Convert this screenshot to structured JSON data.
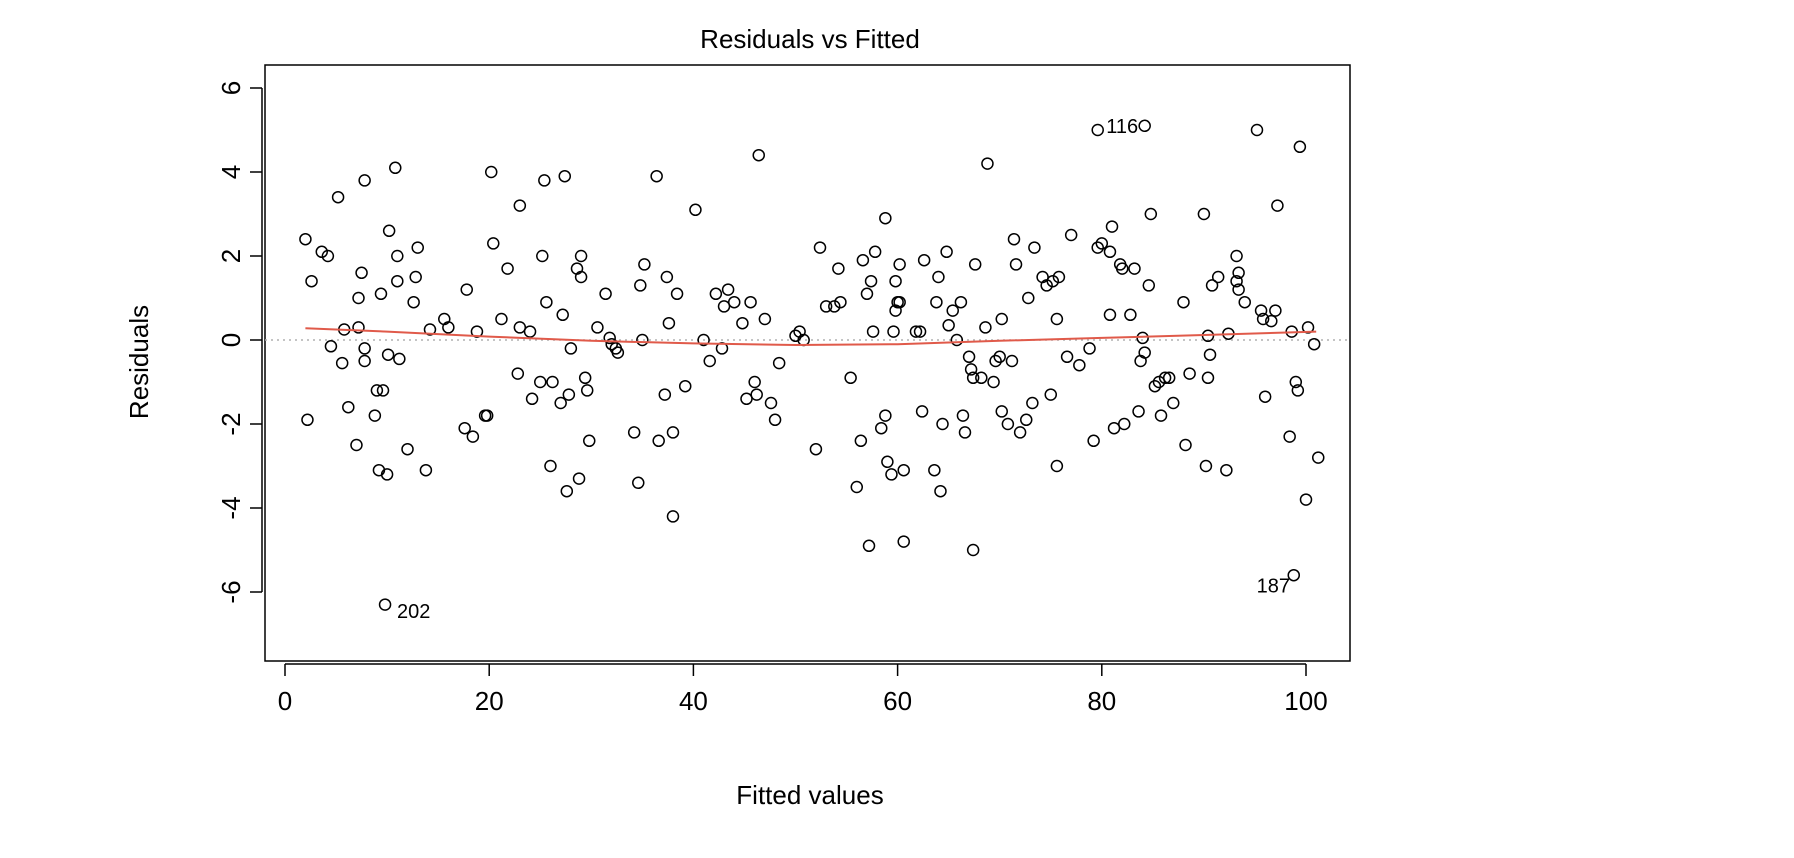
{
  "chart_data": {
    "type": "scatter",
    "title": "Residuals vs Fitted",
    "xlabel": "Fitted values",
    "ylabel": "Residuals",
    "xlim": [
      0,
      102
    ],
    "ylim": [
      -7.5,
      6.5
    ],
    "xticks": [
      0,
      20,
      40,
      60,
      80,
      100
    ],
    "yticks": [
      -6,
      -4,
      -2,
      0,
      2,
      4,
      6
    ],
    "xtick_labels": [
      "0",
      "20",
      "40",
      "60",
      "80",
      "100"
    ],
    "ytick_labels": [
      "-6",
      "-4",
      "-2",
      "0",
      "2",
      "4",
      "6"
    ],
    "grid": false,
    "zero_line": true,
    "colors": {
      "points": "#000000",
      "smooth": "#e05a4a",
      "zero_line": "#b0b0b0"
    },
    "points": [
      {
        "x": 2.0,
        "y": 2.4
      },
      {
        "x": 2.6,
        "y": 1.4
      },
      {
        "x": 3.6,
        "y": 2.1
      },
      {
        "x": 4.2,
        "y": 2.0
      },
      {
        "x": 2.2,
        "y": -1.9
      },
      {
        "x": 4.5,
        "y": -0.15
      },
      {
        "x": 5.2,
        "y": 3.4
      },
      {
        "x": 5.8,
        "y": 0.25
      },
      {
        "x": 5.6,
        "y": -0.55
      },
      {
        "x": 6.2,
        "y": -1.6
      },
      {
        "x": 7.0,
        "y": -2.5
      },
      {
        "x": 7.2,
        "y": 1.0
      },
      {
        "x": 7.2,
        "y": 0.3
      },
      {
        "x": 7.5,
        "y": 1.6
      },
      {
        "x": 7.8,
        "y": 3.8
      },
      {
        "x": 7.8,
        "y": -0.2
      },
      {
        "x": 7.8,
        "y": -0.5
      },
      {
        "x": 8.8,
        "y": -1.8
      },
      {
        "x": 9.0,
        "y": -1.2
      },
      {
        "x": 9.2,
        "y": -3.1
      },
      {
        "x": 9.4,
        "y": 1.1
      },
      {
        "x": 9.6,
        "y": -1.2
      },
      {
        "x": 10.0,
        "y": -3.2
      },
      {
        "x": 10.1,
        "y": -0.35
      },
      {
        "x": 10.2,
        "y": 2.6
      },
      {
        "x": 10.8,
        "y": 4.1
      },
      {
        "x": 11.0,
        "y": 2.0
      },
      {
        "x": 11.0,
        "y": 1.4
      },
      {
        "x": 11.2,
        "y": -0.45
      },
      {
        "x": 12.0,
        "y": -2.6
      },
      {
        "x": 12.6,
        "y": 0.9
      },
      {
        "x": 12.8,
        "y": 1.5
      },
      {
        "x": 13.0,
        "y": 2.2
      },
      {
        "x": 13.8,
        "y": -3.1
      },
      {
        "x": 14.2,
        "y": 0.25
      },
      {
        "x": 15.6,
        "y": 0.5
      },
      {
        "x": 16.0,
        "y": 0.3
      },
      {
        "x": 17.6,
        "y": -2.1
      },
      {
        "x": 17.8,
        "y": 1.2
      },
      {
        "x": 18.4,
        "y": -2.3
      },
      {
        "x": 18.8,
        "y": 0.2
      },
      {
        "x": 19.6,
        "y": -1.8
      },
      {
        "x": 19.8,
        "y": -1.8
      },
      {
        "x": 20.2,
        "y": 4.0
      },
      {
        "x": 20.4,
        "y": 2.3
      },
      {
        "x": 21.2,
        "y": 0.5
      },
      {
        "x": 21.8,
        "y": 1.7
      },
      {
        "x": 22.8,
        "y": -0.8
      },
      {
        "x": 23.0,
        "y": 3.2
      },
      {
        "x": 23.0,
        "y": 0.3
      },
      {
        "x": 24.0,
        "y": 0.2
      },
      {
        "x": 24.2,
        "y": -1.4
      },
      {
        "x": 25.0,
        "y": -1.0
      },
      {
        "x": 25.2,
        "y": 2.0
      },
      {
        "x": 25.4,
        "y": 3.8
      },
      {
        "x": 25.6,
        "y": 0.9
      },
      {
        "x": 26.0,
        "y": -3.0
      },
      {
        "x": 26.2,
        "y": -1.0
      },
      {
        "x": 27.0,
        "y": -1.5
      },
      {
        "x": 27.2,
        "y": 0.6
      },
      {
        "x": 27.4,
        "y": 3.9
      },
      {
        "x": 27.6,
        "y": -3.6
      },
      {
        "x": 27.8,
        "y": -1.3
      },
      {
        "x": 28.0,
        "y": -0.2
      },
      {
        "x": 28.6,
        "y": 1.7
      },
      {
        "x": 28.8,
        "y": -3.3
      },
      {
        "x": 29.0,
        "y": 2.0
      },
      {
        "x": 29.0,
        "y": 1.5
      },
      {
        "x": 29.4,
        "y": -0.9
      },
      {
        "x": 29.6,
        "y": -1.2
      },
      {
        "x": 29.8,
        "y": -2.4
      },
      {
        "x": 30.6,
        "y": 0.3
      },
      {
        "x": 31.4,
        "y": 1.1
      },
      {
        "x": 31.8,
        "y": 0.05
      },
      {
        "x": 32.0,
        "y": -0.1
      },
      {
        "x": 32.4,
        "y": -0.2
      },
      {
        "x": 32.6,
        "y": -0.3
      },
      {
        "x": 34.2,
        "y": -2.2
      },
      {
        "x": 34.6,
        "y": -3.4
      },
      {
        "x": 34.8,
        "y": 1.3
      },
      {
        "x": 35.0,
        "y": 0.0
      },
      {
        "x": 35.2,
        "y": 1.8
      },
      {
        "x": 36.4,
        "y": 3.9
      },
      {
        "x": 36.6,
        "y": -2.4
      },
      {
        "x": 37.2,
        "y": -1.3
      },
      {
        "x": 37.4,
        "y": 1.5
      },
      {
        "x": 37.6,
        "y": 0.4
      },
      {
        "x": 38.0,
        "y": -2.2
      },
      {
        "x": 38.0,
        "y": -4.2
      },
      {
        "x": 38.4,
        "y": 1.1
      },
      {
        "x": 39.2,
        "y": -1.1
      },
      {
        "x": 40.2,
        "y": 3.1
      },
      {
        "x": 41.0,
        "y": 0.0
      },
      {
        "x": 41.6,
        "y": -0.5
      },
      {
        "x": 42.2,
        "y": 1.1
      },
      {
        "x": 42.8,
        "y": -0.2
      },
      {
        "x": 43.0,
        "y": 0.8
      },
      {
        "x": 43.4,
        "y": 1.2
      },
      {
        "x": 44.0,
        "y": 0.9
      },
      {
        "x": 44.8,
        "y": 0.4
      },
      {
        "x": 45.2,
        "y": -1.4
      },
      {
        "x": 45.6,
        "y": 0.9
      },
      {
        "x": 46.0,
        "y": -1.0
      },
      {
        "x": 46.2,
        "y": -1.3
      },
      {
        "x": 46.4,
        "y": 4.4
      },
      {
        "x": 47.0,
        "y": 0.5
      },
      {
        "x": 47.6,
        "y": -1.5
      },
      {
        "x": 48.0,
        "y": -1.9
      },
      {
        "x": 48.4,
        "y": -0.55
      },
      {
        "x": 50.0,
        "y": 0.1
      },
      {
        "x": 50.4,
        "y": 0.2
      },
      {
        "x": 50.8,
        "y": 0.0
      },
      {
        "x": 52.0,
        "y": -2.6
      },
      {
        "x": 52.4,
        "y": 2.2
      },
      {
        "x": 53.0,
        "y": 0.8
      },
      {
        "x": 53.8,
        "y": 0.8
      },
      {
        "x": 54.2,
        "y": 1.7
      },
      {
        "x": 54.4,
        "y": 0.9
      },
      {
        "x": 55.4,
        "y": -0.9
      },
      {
        "x": 56.0,
        "y": -3.5
      },
      {
        "x": 56.4,
        "y": -2.4
      },
      {
        "x": 56.6,
        "y": 1.9
      },
      {
        "x": 57.0,
        "y": 1.1
      },
      {
        "x": 57.2,
        "y": -4.9
      },
      {
        "x": 57.4,
        "y": 1.4
      },
      {
        "x": 57.6,
        "y": 0.2
      },
      {
        "x": 57.8,
        "y": 2.1
      },
      {
        "x": 58.4,
        "y": -2.1
      },
      {
        "x": 58.8,
        "y": -1.8
      },
      {
        "x": 58.8,
        "y": 2.9
      },
      {
        "x": 59.0,
        "y": -2.9
      },
      {
        "x": 59.4,
        "y": -3.2
      },
      {
        "x": 59.6,
        "y": 0.2
      },
      {
        "x": 59.8,
        "y": 1.4
      },
      {
        "x": 59.8,
        "y": 0.7
      },
      {
        "x": 60.0,
        "y": 0.9
      },
      {
        "x": 60.2,
        "y": 0.9
      },
      {
        "x": 60.2,
        "y": 1.8
      },
      {
        "x": 60.6,
        "y": -3.1
      },
      {
        "x": 60.6,
        "y": -4.8
      },
      {
        "x": 61.8,
        "y": 0.2
      },
      {
        "x": 62.2,
        "y": 0.2
      },
      {
        "x": 62.4,
        "y": -1.7
      },
      {
        "x": 62.6,
        "y": 1.9
      },
      {
        "x": 63.6,
        "y": -3.1
      },
      {
        "x": 63.8,
        "y": 0.9
      },
      {
        "x": 64.0,
        "y": 1.5
      },
      {
        "x": 64.2,
        "y": -3.6
      },
      {
        "x": 64.4,
        "y": -2.0
      },
      {
        "x": 64.8,
        "y": 2.1
      },
      {
        "x": 65.0,
        "y": 0.35
      },
      {
        "x": 65.4,
        "y": 0.7
      },
      {
        "x": 65.8,
        "y": 0.0
      },
      {
        "x": 66.2,
        "y": 0.9
      },
      {
        "x": 66.4,
        "y": -1.8
      },
      {
        "x": 66.6,
        "y": -2.2
      },
      {
        "x": 67.0,
        "y": -0.4
      },
      {
        "x": 67.2,
        "y": -0.7
      },
      {
        "x": 67.4,
        "y": -0.9
      },
      {
        "x": 67.4,
        "y": -5.0
      },
      {
        "x": 67.6,
        "y": 1.8
      },
      {
        "x": 68.2,
        "y": -0.9
      },
      {
        "x": 68.6,
        "y": 0.3
      },
      {
        "x": 68.8,
        "y": 4.2
      },
      {
        "x": 69.4,
        "y": -1.0
      },
      {
        "x": 69.6,
        "y": -0.5
      },
      {
        "x": 70.0,
        "y": -0.4
      },
      {
        "x": 70.2,
        "y": 0.5
      },
      {
        "x": 70.2,
        "y": -1.7
      },
      {
        "x": 70.8,
        "y": -2.0
      },
      {
        "x": 71.2,
        "y": -0.5
      },
      {
        "x": 71.4,
        "y": 2.4
      },
      {
        "x": 71.6,
        "y": 1.8
      },
      {
        "x": 72.0,
        "y": -2.2
      },
      {
        "x": 72.6,
        "y": -1.9
      },
      {
        "x": 72.8,
        "y": 1.0
      },
      {
        "x": 73.2,
        "y": -1.5
      },
      {
        "x": 73.4,
        "y": 2.2
      },
      {
        "x": 74.2,
        "y": 1.5
      },
      {
        "x": 74.6,
        "y": 1.3
      },
      {
        "x": 75.0,
        "y": -1.3
      },
      {
        "x": 75.2,
        "y": 1.4
      },
      {
        "x": 75.6,
        "y": -3.0
      },
      {
        "x": 75.6,
        "y": 0.5
      },
      {
        "x": 75.8,
        "y": 1.5
      },
      {
        "x": 76.6,
        "y": -0.4
      },
      {
        "x": 77.0,
        "y": 2.5
      },
      {
        "x": 77.8,
        "y": -0.6
      },
      {
        "x": 78.8,
        "y": -0.2
      },
      {
        "x": 79.2,
        "y": -2.4
      },
      {
        "x": 79.6,
        "y": 5.0
      },
      {
        "x": 79.6,
        "y": 2.2
      },
      {
        "x": 80.0,
        "y": 2.3
      },
      {
        "x": 80.8,
        "y": 2.1
      },
      {
        "x": 80.8,
        "y": 0.6
      },
      {
        "x": 81.0,
        "y": 2.7
      },
      {
        "x": 81.2,
        "y": -2.1
      },
      {
        "x": 81.8,
        "y": 1.8
      },
      {
        "x": 82.0,
        "y": 1.7
      },
      {
        "x": 82.2,
        "y": -2.0
      },
      {
        "x": 82.8,
        "y": 0.6
      },
      {
        "x": 83.2,
        "y": 1.7
      },
      {
        "x": 83.6,
        "y": -1.7
      },
      {
        "x": 83.8,
        "y": -0.5
      },
      {
        "x": 84.0,
        "y": 0.05
      },
      {
        "x": 84.2,
        "y": 5.1
      },
      {
        "x": 84.2,
        "y": -0.3
      },
      {
        "x": 84.6,
        "y": 1.3
      },
      {
        "x": 84.8,
        "y": 3.0
      },
      {
        "x": 85.2,
        "y": -1.1
      },
      {
        "x": 85.6,
        "y": -1.0
      },
      {
        "x": 85.8,
        "y": -1.8
      },
      {
        "x": 86.2,
        "y": -0.9
      },
      {
        "x": 86.6,
        "y": -0.9
      },
      {
        "x": 87.0,
        "y": -1.5
      },
      {
        "x": 88.0,
        "y": 0.9
      },
      {
        "x": 88.2,
        "y": -2.5
      },
      {
        "x": 88.6,
        "y": -0.8
      },
      {
        "x": 90.0,
        "y": 3.0
      },
      {
        "x": 90.2,
        "y": -3.0
      },
      {
        "x": 90.4,
        "y": 0.1
      },
      {
        "x": 90.4,
        "y": -0.9
      },
      {
        "x": 90.6,
        "y": -0.35
      },
      {
        "x": 90.8,
        "y": 1.3
      },
      {
        "x": 91.4,
        "y": 1.5
      },
      {
        "x": 92.2,
        "y": -3.1
      },
      {
        "x": 92.4,
        "y": 0.15
      },
      {
        "x": 93.2,
        "y": 2.0
      },
      {
        "x": 93.2,
        "y": 1.4
      },
      {
        "x": 93.4,
        "y": 1.2
      },
      {
        "x": 93.4,
        "y": 1.6
      },
      {
        "x": 94.0,
        "y": 0.9
      },
      {
        "x": 95.2,
        "y": 5.0
      },
      {
        "x": 95.6,
        "y": 0.7
      },
      {
        "x": 95.8,
        "y": 0.5
      },
      {
        "x": 96.0,
        "y": -1.35
      },
      {
        "x": 96.6,
        "y": 0.45
      },
      {
        "x": 97.0,
        "y": 0.7
      },
      {
        "x": 97.2,
        "y": 3.2
      },
      {
        "x": 98.4,
        "y": -2.3
      },
      {
        "x": 98.6,
        "y": 0.2
      },
      {
        "x": 98.8,
        "y": -5.6
      },
      {
        "x": 99.0,
        "y": -1.0
      },
      {
        "x": 99.2,
        "y": -1.2
      },
      {
        "x": 99.4,
        "y": 4.6
      },
      {
        "x": 100.0,
        "y": -3.8
      },
      {
        "x": 100.2,
        "y": 0.3
      },
      {
        "x": 100.8,
        "y": -0.1
      },
      {
        "x": 101.2,
        "y": -2.8
      },
      {
        "x": 9.8,
        "y": -6.3
      }
    ],
    "smooth_line": {
      "x": [
        2,
        10,
        20,
        30,
        40,
        50,
        60,
        70,
        80,
        90,
        101
      ],
      "y": [
        0.28,
        0.2,
        0.08,
        -0.02,
        -0.08,
        -0.12,
        -0.1,
        -0.02,
        0.05,
        0.12,
        0.2
      ]
    },
    "annotations": [
      {
        "text": "116",
        "x": 82.0,
        "y": 5.1
      },
      {
        "text": "202",
        "x": 12.6,
        "y": -6.45
      },
      {
        "text": "187",
        "x": 96.8,
        "y": -5.85
      }
    ]
  }
}
